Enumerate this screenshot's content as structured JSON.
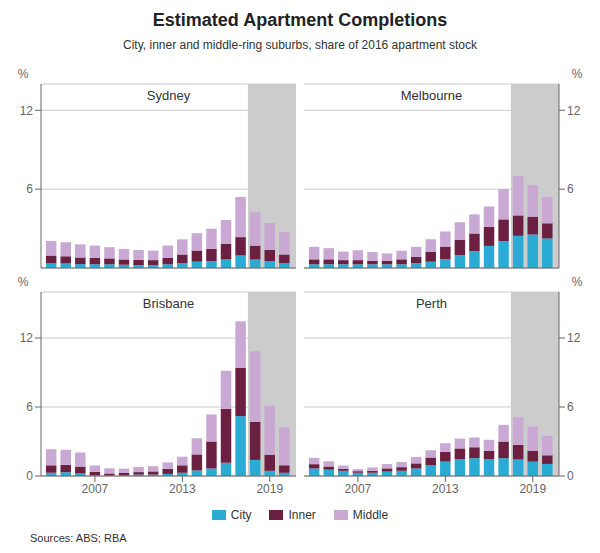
{
  "title": "Estimated Apartment Completions",
  "subtitle": "City, inner and middle-ring suburbs, share of 2016 apartment stock",
  "source": "Sources: ABS; RBA",
  "legend": "bottom",
  "chart_data": [
    {
      "type": "bar",
      "stacked": true,
      "title": "Sydney",
      "ylabel": "%",
      "grid": true,
      "tick_labels": "y",
      "x": [
        2004,
        2005,
        2006,
        2007,
        2008,
        2009,
        2010,
        2011,
        2012,
        2013,
        2014,
        2015,
        2016,
        2017,
        2018,
        2019,
        2020
      ],
      "xlim": [
        2003.3,
        2020.8
      ],
      "xticks": [
        2007,
        2013,
        2019
      ],
      "ylim": [
        0,
        14
      ],
      "yticks": [
        0,
        6,
        12
      ],
      "shaded": {
        "x": [
          2017.5,
          2020.8
        ],
        "color": "#CCCCCC"
      },
      "series": [
        {
          "name": "City",
          "color": "#29ABD4",
          "values": [
            0.35,
            0.35,
            0.3,
            0.28,
            0.28,
            0.25,
            0.22,
            0.22,
            0.28,
            0.38,
            0.48,
            0.52,
            0.65,
            0.95,
            0.65,
            0.52,
            0.38
          ]
        },
        {
          "name": "Inner",
          "color": "#6B2042",
          "values": [
            0.6,
            0.55,
            0.5,
            0.48,
            0.45,
            0.4,
            0.4,
            0.38,
            0.48,
            0.65,
            0.85,
            0.95,
            1.2,
            1.4,
            1.05,
            0.85,
            0.65
          ]
        },
        {
          "name": "Middle",
          "color": "#C9A8D4",
          "values": [
            1.1,
            1.05,
            1.0,
            0.95,
            0.85,
            0.8,
            0.75,
            0.72,
            0.95,
            1.15,
            1.32,
            1.52,
            1.8,
            3.05,
            2.55,
            2.05,
            1.7
          ]
        }
      ]
    },
    {
      "type": "bar",
      "stacked": true,
      "title": "Melbourne",
      "ylabel": "%",
      "grid": true,
      "tick_labels": "y",
      "x": [
        2004,
        2005,
        2006,
        2007,
        2008,
        2009,
        2010,
        2011,
        2012,
        2013,
        2014,
        2015,
        2016,
        2017,
        2018,
        2019,
        2020
      ],
      "xlim": [
        2003.3,
        2020.8
      ],
      "xticks": [
        2007,
        2013,
        2019
      ],
      "ylim": [
        0,
        14
      ],
      "yticks": [
        0,
        6,
        12
      ],
      "shaded": {
        "x": [
          2017.5,
          2020.8
        ],
        "color": "#CCCCCC"
      },
      "series": [
        {
          "name": "City",
          "color": "#29ABD4",
          "values": [
            0.28,
            0.28,
            0.28,
            0.28,
            0.28,
            0.28,
            0.28,
            0.38,
            0.48,
            0.68,
            0.98,
            1.28,
            1.68,
            2.05,
            2.45,
            2.55,
            2.25
          ]
        },
        {
          "name": "Inner",
          "color": "#6B2042",
          "values": [
            0.38,
            0.38,
            0.32,
            0.32,
            0.28,
            0.28,
            0.38,
            0.48,
            0.75,
            0.95,
            1.15,
            1.35,
            1.45,
            1.65,
            1.55,
            1.35,
            1.15
          ]
        },
        {
          "name": "Middle",
          "color": "#C9A8D4",
          "values": [
            0.95,
            0.85,
            0.65,
            0.75,
            0.65,
            0.55,
            0.65,
            0.75,
            0.95,
            1.15,
            1.35,
            1.45,
            1.55,
            2.3,
            3.0,
            2.4,
            2.0
          ]
        }
      ]
    },
    {
      "type": "bar",
      "stacked": true,
      "title": "Brisbane",
      "ylabel": "%",
      "grid": true,
      "tick_labels": true,
      "x": [
        2004,
        2005,
        2006,
        2007,
        2008,
        2009,
        2010,
        2011,
        2012,
        2013,
        2014,
        2015,
        2016,
        2017,
        2018,
        2019,
        2020
      ],
      "xlim": [
        2003.3,
        2020.8
      ],
      "xticks": [
        2007,
        2013,
        2019
      ],
      "ylim": [
        0,
        16
      ],
      "yticks": [
        0,
        6,
        12
      ],
      "shaded": {
        "x": [
          2017.5,
          2020.8
        ],
        "color": "#CCCCCC"
      },
      "series": [
        {
          "name": "City",
          "color": "#29ABD4",
          "values": [
            0.28,
            0.32,
            0.22,
            0.08,
            0.04,
            0.08,
            0.12,
            0.12,
            0.18,
            0.28,
            0.48,
            0.65,
            1.15,
            5.2,
            1.4,
            0.45,
            0.28
          ]
        },
        {
          "name": "Inner",
          "color": "#6B2042",
          "values": [
            0.65,
            0.65,
            0.6,
            0.28,
            0.18,
            0.18,
            0.22,
            0.28,
            0.45,
            0.65,
            1.4,
            2.35,
            4.7,
            4.2,
            3.3,
            1.4,
            0.65
          ]
        },
        {
          "name": "Middle",
          "color": "#C9A8D4",
          "values": [
            1.4,
            1.32,
            1.22,
            0.55,
            0.45,
            0.38,
            0.45,
            0.45,
            0.55,
            0.75,
            1.4,
            2.35,
            3.3,
            4.05,
            6.15,
            4.25,
            3.3
          ]
        }
      ]
    },
    {
      "type": "bar",
      "stacked": true,
      "title": "Perth",
      "ylabel": "%",
      "grid": true,
      "tick_labels": true,
      "x": [
        2004,
        2005,
        2006,
        2007,
        2008,
        2009,
        2010,
        2011,
        2012,
        2013,
        2014,
        2015,
        2016,
        2017,
        2018,
        2019,
        2020
      ],
      "xlim": [
        2003.3,
        2020.8
      ],
      "xticks": [
        2007,
        2013,
        2019
      ],
      "ylim": [
        0,
        16
      ],
      "yticks": [
        0,
        6,
        12
      ],
      "shaded": {
        "x": [
          2017.5,
          2020.8
        ],
        "color": "#CCCCCC"
      },
      "series": [
        {
          "name": "City",
          "color": "#29ABD4",
          "values": [
            0.65,
            0.55,
            0.45,
            0.28,
            0.28,
            0.38,
            0.45,
            0.65,
            0.95,
            1.25,
            1.45,
            1.55,
            1.45,
            1.55,
            1.45,
            1.25,
            1.05
          ]
        },
        {
          "name": "Inner",
          "color": "#6B2042",
          "values": [
            0.38,
            0.28,
            0.18,
            0.14,
            0.18,
            0.28,
            0.32,
            0.45,
            0.65,
            0.85,
            0.95,
            0.95,
            0.75,
            1.45,
            1.25,
            0.95,
            0.75
          ]
        },
        {
          "name": "Middle",
          "color": "#C9A8D4",
          "values": [
            0.55,
            0.45,
            0.28,
            0.18,
            0.28,
            0.38,
            0.45,
            0.55,
            0.65,
            0.75,
            0.85,
            0.85,
            0.95,
            1.45,
            2.4,
            2.1,
            1.7
          ]
        }
      ]
    }
  ]
}
